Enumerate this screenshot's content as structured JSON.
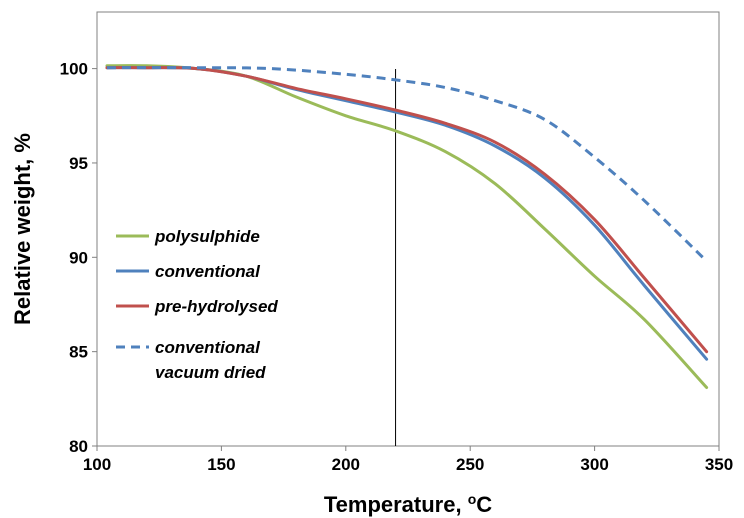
{
  "chart_data": {
    "type": "line",
    "title": "",
    "xlabel": "Temperature, ",
    "xlabel_unit_superscript": "o",
    "xlabel_unit": "C",
    "ylabel": "Relative weight, %",
    "xlim": [
      100,
      350
    ],
    "ylim": [
      80,
      103
    ],
    "x_ticks": [
      "100",
      "150",
      "200",
      "250",
      "300",
      "350"
    ],
    "y_ticks": [
      "80",
      "85",
      "90",
      "95",
      "100"
    ],
    "grid": false,
    "legend_position": "left-middle",
    "reference_line_x": 220,
    "series": [
      {
        "name": "polysulphide",
        "color": "#9bbb59",
        "dash": "solid",
        "points": [
          [
            104,
            100.15
          ],
          [
            120,
            100.15
          ],
          [
            140,
            100.0
          ],
          [
            160,
            99.6
          ],
          [
            180,
            98.5
          ],
          [
            200,
            97.5
          ],
          [
            220,
            96.7
          ],
          [
            240,
            95.6
          ],
          [
            260,
            93.9
          ],
          [
            280,
            91.5
          ],
          [
            300,
            89.0
          ],
          [
            320,
            86.7
          ],
          [
            345,
            83.1
          ]
        ]
      },
      {
        "name": "conventional",
        "color": "#4f81bd",
        "dash": "solid",
        "points": [
          [
            104,
            100.05
          ],
          [
            120,
            100.05
          ],
          [
            140,
            100.0
          ],
          [
            160,
            99.6
          ],
          [
            180,
            98.9
          ],
          [
            200,
            98.3
          ],
          [
            220,
            97.7
          ],
          [
            240,
            97.0
          ],
          [
            260,
            95.9
          ],
          [
            280,
            94.2
          ],
          [
            300,
            91.7
          ],
          [
            320,
            88.5
          ],
          [
            345,
            84.6
          ]
        ]
      },
      {
        "name": "pre-hydrolysed",
        "color": "#c0504d",
        "dash": "solid",
        "points": [
          [
            104,
            100.05
          ],
          [
            120,
            100.05
          ],
          [
            140,
            100.0
          ],
          [
            160,
            99.6
          ],
          [
            180,
            98.95
          ],
          [
            200,
            98.4
          ],
          [
            220,
            97.8
          ],
          [
            240,
            97.1
          ],
          [
            260,
            96.1
          ],
          [
            280,
            94.4
          ],
          [
            300,
            92.0
          ],
          [
            320,
            88.9
          ],
          [
            345,
            85.0
          ]
        ]
      },
      {
        "name": "conventional vacuum dried",
        "legend_lines": [
          "conventional",
          "vacuum dried"
        ],
        "color": "#4f81bd",
        "dash": "dashed",
        "points": [
          [
            104,
            100.05
          ],
          [
            140,
            100.05
          ],
          [
            170,
            100.0
          ],
          [
            200,
            99.7
          ],
          [
            220,
            99.4
          ],
          [
            240,
            99.0
          ],
          [
            260,
            98.3
          ],
          [
            280,
            97.3
          ],
          [
            300,
            95.3
          ],
          [
            320,
            93.0
          ],
          [
            345,
            89.8
          ]
        ]
      }
    ]
  }
}
